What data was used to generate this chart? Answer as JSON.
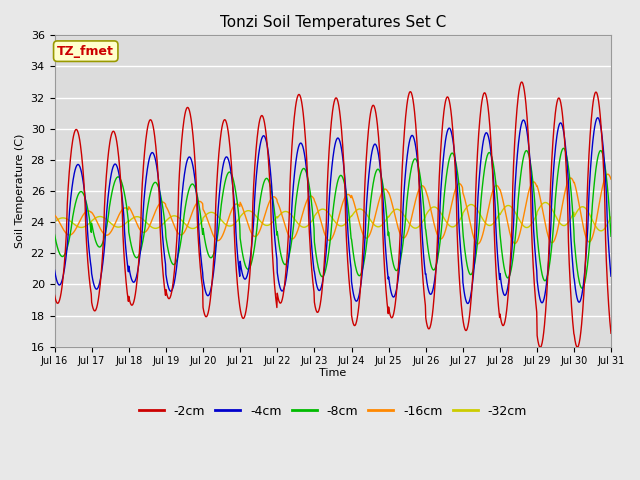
{
  "title": "Tonzi Soil Temperatures Set C",
  "xlabel": "Time",
  "ylabel": "Soil Temperature (C)",
  "annotation": "TZ_fmet",
  "ylim": [
    16,
    36
  ],
  "yticks": [
    16,
    18,
    20,
    22,
    24,
    26,
    28,
    30,
    32,
    34,
    36
  ],
  "xtick_labels": [
    "Jul 16",
    "Jul 17",
    "Jul 18",
    "Jul 19",
    "Jul 20",
    "Jul 21",
    "Jul 22",
    "Jul 23",
    "Jul 24",
    "Jul 25",
    "Jul 26",
    "Jul 27",
    "Jul 28",
    "Jul 29",
    "Jul 30",
    "Jul 31"
  ],
  "series": {
    "-2cm": {
      "color": "#cc0000",
      "linewidth": 1.0
    },
    "-4cm": {
      "color": "#0000cc",
      "linewidth": 1.0
    },
    "-8cm": {
      "color": "#00bb00",
      "linewidth": 1.0
    },
    "-16cm": {
      "color": "#ff8800",
      "linewidth": 1.0
    },
    "-32cm": {
      "color": "#cccc00",
      "linewidth": 1.0
    }
  },
  "legend_order": [
    "-2cm",
    "-4cm",
    "-8cm",
    "-16cm",
    "-32cm"
  ],
  "background_color": "#e8e8e8",
  "plot_bg_color": "#dcdcdc",
  "grid_color": "#ffffff",
  "annotation_box_color": "#ffffcc",
  "annotation_text_color": "#cc0000",
  "n_points_per_day": 96,
  "n_days": 15,
  "base_temp": 24.0
}
